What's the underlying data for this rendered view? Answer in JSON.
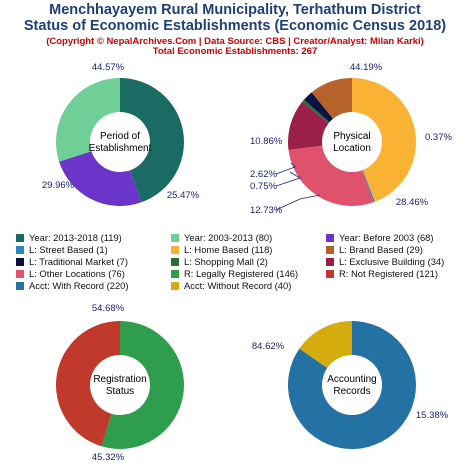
{
  "header": {
    "title_line1": "Menchhayayem Rural Municipality, Terhathum District",
    "title_line2": "Status of Economic Establishments (Economic Census 2018)",
    "subtitle": "(Copyright © NepalArchives.Com | Data Source: CBS | Creator/Analyst: Milan Karki)",
    "total": "Total Economic Establishments: 267"
  },
  "chart_data": [
    {
      "type": "pie",
      "center_label": [
        "Period of",
        "Establishment"
      ],
      "slices": [
        {
          "label": "Year: 2013-2018",
          "value": 119,
          "pct": "44.57%",
          "color": "#1a6b63"
        },
        {
          "label": "Year: Before 2003",
          "value": 68,
          "pct": "25.47%",
          "color": "#6c35c9"
        },
        {
          "label": "Year: 2003-2013",
          "value": 80,
          "pct": "29.96%",
          "color": "#6fcf97"
        }
      ]
    },
    {
      "type": "pie",
      "center_label": [
        "Physical",
        "Location"
      ],
      "slices": [
        {
          "label": "L: Home Based",
          "value": 118,
          "pct": "44.19%",
          "color": "#f9b233"
        },
        {
          "label": "L: Street Based",
          "value": 1,
          "pct": "0.37%",
          "color": "#2e86c1"
        },
        {
          "label": "L: Other Locations",
          "value": 76,
          "pct": "28.46%",
          "color": "#e0526b"
        },
        {
          "label": "L: Exclusive Building",
          "value": 34,
          "pct": "12.73%",
          "color": "#9c1f4a"
        },
        {
          "label": "L: Shopping Mall",
          "value": 2,
          "pct": "0.75%",
          "color": "#2e6b3a"
        },
        {
          "label": "L: Traditional Market",
          "value": 7,
          "pct": "2.62%",
          "color": "#0b1140"
        },
        {
          "label": "L: Brand Based",
          "value": 29,
          "pct": "10.86%",
          "color": "#b5632a"
        }
      ]
    },
    {
      "type": "pie",
      "center_label": [
        "Registration",
        "Status"
      ],
      "slices": [
        {
          "label": "R: Legally Registered",
          "value": 146,
          "pct": "54.68%",
          "color": "#2e9e4e"
        },
        {
          "label": "R: Not Registered",
          "value": 121,
          "pct": "45.32%",
          "color": "#c0392b"
        }
      ]
    },
    {
      "type": "pie",
      "center_label": [
        "Accounting",
        "Records"
      ],
      "slices": [
        {
          "label": "Acct: With Record",
          "value": 220,
          "pct": "84.62%",
          "color": "#2471a3"
        },
        {
          "label": "Acct: Without Record",
          "value": 40,
          "pct": "15.38%",
          "color": "#d4ac0d"
        }
      ]
    }
  ],
  "legend": [
    {
      "text": "Year: 2013-2018 (119)",
      "color": "#1a6b63"
    },
    {
      "text": "Year: 2003-2013 (80)",
      "color": "#6fcf97"
    },
    {
      "text": "Year: Before 2003 (68)",
      "color": "#6c35c9"
    },
    {
      "text": "L: Street Based (1)",
      "color": "#2e86c1"
    },
    {
      "text": "L: Home Based (118)",
      "color": "#f9b233"
    },
    {
      "text": "L: Brand Based (29)",
      "color": "#b5632a"
    },
    {
      "text": "L: Traditional Market (7)",
      "color": "#0b1140"
    },
    {
      "text": "L: Shopping Mall (2)",
      "color": "#2e6b3a"
    },
    {
      "text": "L: Exclusive Building (34)",
      "color": "#9c1f4a"
    },
    {
      "text": "L: Other Locations (76)",
      "color": "#e0526b"
    },
    {
      "text": "R: Legally Registered (146)",
      "color": "#2e9e4e"
    },
    {
      "text": "R: Not Registered (121)",
      "color": "#c0392b"
    },
    {
      "text": "Acct: With Record (220)",
      "color": "#2471a3"
    },
    {
      "text": "Acct: Without Record (40)",
      "color": "#d4ac0d"
    }
  ]
}
